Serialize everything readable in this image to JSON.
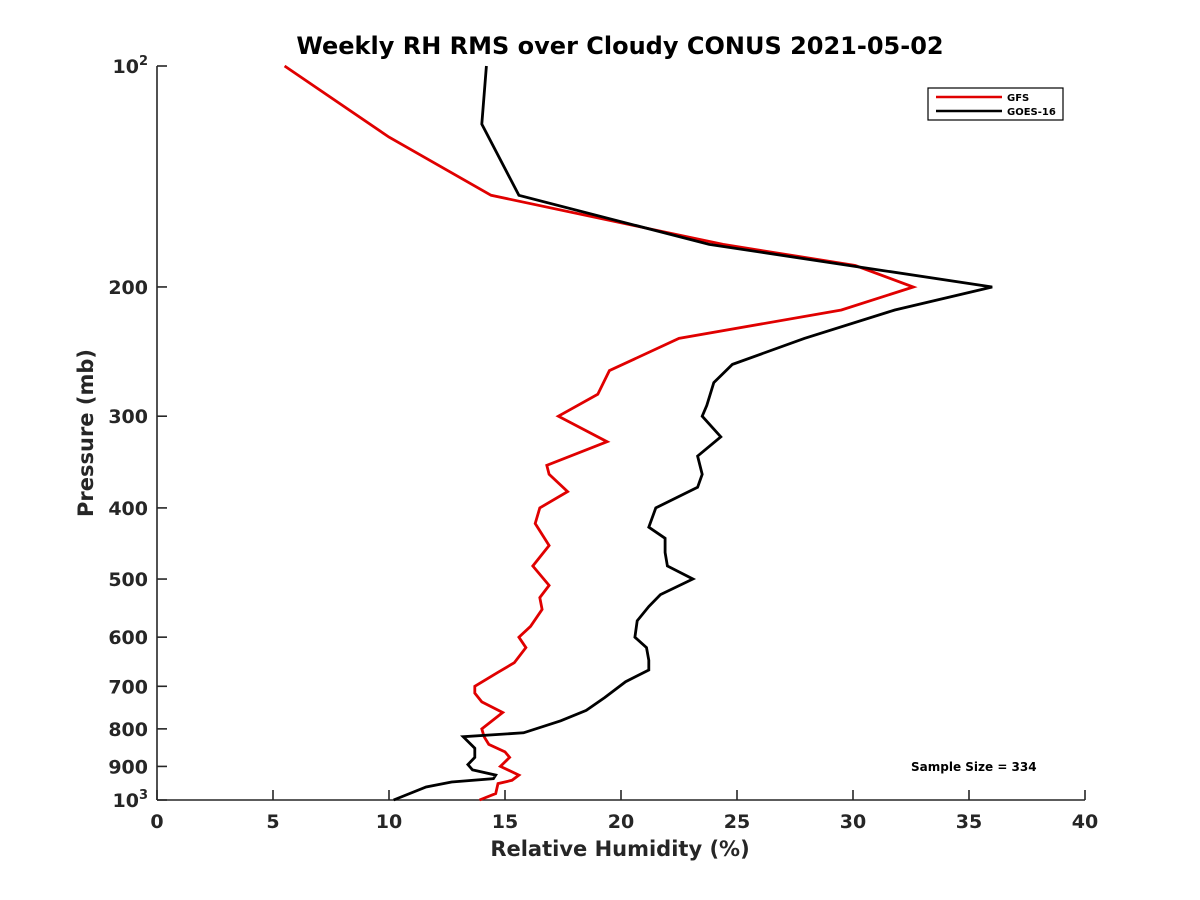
{
  "chart_data": {
    "type": "line",
    "title": "Weekly RH RMS over Cloudy CONUS 2021-05-02",
    "xlabel": "Relative Humidity (%)",
    "ylabel": "Pressure (mb)",
    "xlim": [
      0,
      40
    ],
    "ylim": [
      100,
      1000
    ],
    "y_scale": "log",
    "y_reversed": true,
    "grid": false,
    "x_ticks": [
      0,
      5,
      10,
      15,
      20,
      25,
      30,
      35,
      40
    ],
    "y_ticks": [
      {
        "value": 100,
        "label": "10",
        "sup": "2"
      },
      {
        "value": 200,
        "label": "200"
      },
      {
        "value": 300,
        "label": "300"
      },
      {
        "value": 400,
        "label": "400"
      },
      {
        "value": 500,
        "label": "500"
      },
      {
        "value": 600,
        "label": "600"
      },
      {
        "value": 700,
        "label": "700"
      },
      {
        "value": 800,
        "label": "800"
      },
      {
        "value": 900,
        "label": "900"
      },
      {
        "value": 1000,
        "label": "10",
        "sup": "3"
      }
    ],
    "legend": {
      "placement": "top-right"
    },
    "annotations": [
      {
        "text": "Sample Size = 334",
        "placement": "bottom-right"
      }
    ],
    "series": [
      {
        "name": "GFS",
        "color": "#e00000",
        "points": [
          [
            5.5,
            100
          ],
          [
            10.0,
            125
          ],
          [
            14.4,
            150
          ],
          [
            24.4,
            175
          ],
          [
            30.1,
            187
          ],
          [
            32.6,
            200
          ],
          [
            29.5,
            215
          ],
          [
            22.5,
            235
          ],
          [
            19.5,
            260
          ],
          [
            19.0,
            280
          ],
          [
            17.3,
            300
          ],
          [
            19.4,
            325
          ],
          [
            16.8,
            350
          ],
          [
            16.9,
            360
          ],
          [
            17.7,
            380
          ],
          [
            16.5,
            400
          ],
          [
            16.3,
            420
          ],
          [
            16.9,
            450
          ],
          [
            16.2,
            480
          ],
          [
            16.9,
            510
          ],
          [
            16.5,
            530
          ],
          [
            16.6,
            550
          ],
          [
            16.1,
            580
          ],
          [
            15.6,
            600
          ],
          [
            15.9,
            620
          ],
          [
            15.4,
            650
          ],
          [
            14.7,
            670
          ],
          [
            13.7,
            700
          ],
          [
            13.7,
            715
          ],
          [
            14.0,
            735
          ],
          [
            14.9,
            760
          ],
          [
            14.0,
            800
          ],
          [
            14.1,
            820
          ],
          [
            14.3,
            840
          ],
          [
            15.0,
            860
          ],
          [
            15.2,
            875
          ],
          [
            14.8,
            900
          ],
          [
            15.6,
            925
          ],
          [
            15.3,
            940
          ],
          [
            14.7,
            950
          ],
          [
            14.6,
            980
          ],
          [
            13.9,
            1000
          ]
        ]
      },
      {
        "name": "GOES-16",
        "color": "#000000",
        "points": [
          [
            14.2,
            100
          ],
          [
            14.0,
            120
          ],
          [
            15.6,
            150
          ],
          [
            23.8,
            175
          ],
          [
            31.3,
            190
          ],
          [
            36.0,
            200
          ],
          [
            31.8,
            215
          ],
          [
            27.9,
            235
          ],
          [
            24.8,
            255
          ],
          [
            24.0,
            270
          ],
          [
            23.7,
            290
          ],
          [
            23.5,
            300
          ],
          [
            24.3,
            320
          ],
          [
            23.3,
            340
          ],
          [
            23.5,
            360
          ],
          [
            23.3,
            375
          ],
          [
            21.5,
            400
          ],
          [
            21.2,
            425
          ],
          [
            21.9,
            440
          ],
          [
            21.9,
            460
          ],
          [
            22.0,
            480
          ],
          [
            23.1,
            500
          ],
          [
            21.7,
            525
          ],
          [
            21.2,
            545
          ],
          [
            20.7,
            570
          ],
          [
            20.6,
            600
          ],
          [
            21.1,
            620
          ],
          [
            21.2,
            645
          ],
          [
            21.2,
            665
          ],
          [
            20.2,
            690
          ],
          [
            19.3,
            725
          ],
          [
            18.5,
            755
          ],
          [
            17.4,
            780
          ],
          [
            15.8,
            810
          ],
          [
            13.2,
            820
          ],
          [
            13.7,
            850
          ],
          [
            13.7,
            875
          ],
          [
            13.4,
            895
          ],
          [
            13.6,
            910
          ],
          [
            14.6,
            925
          ],
          [
            14.5,
            935
          ],
          [
            12.7,
            945
          ],
          [
            11.6,
            960
          ],
          [
            10.2,
            1000
          ]
        ]
      }
    ]
  }
}
